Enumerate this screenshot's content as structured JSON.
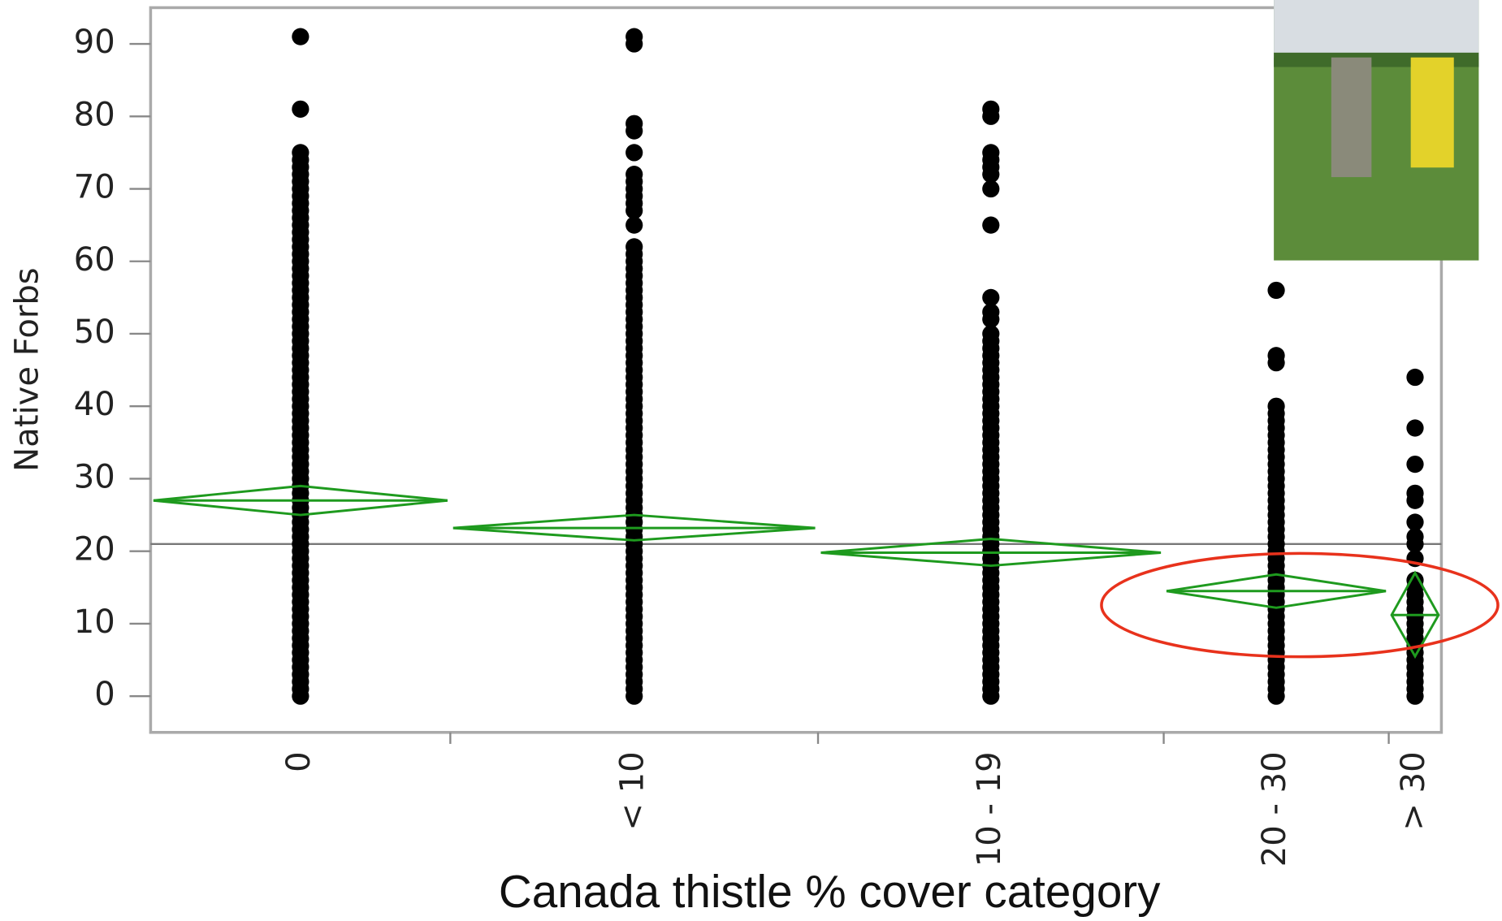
{
  "chart_data": {
    "type": "oneway",
    "y_label": "Native Forbs",
    "x_label": "Canada thistle % cover category",
    "categories": [
      "0",
      "< 10",
      "10 - 19",
      "20 - 30",
      "> 30"
    ],
    "points": [
      [
        0,
        1,
        2,
        3,
        4,
        5,
        6,
        7,
        8,
        9,
        10,
        11,
        12,
        13,
        14,
        15,
        16,
        17,
        18,
        19,
        20,
        21,
        22,
        23,
        24,
        25,
        26,
        27,
        28,
        29,
        30,
        31,
        32,
        33,
        34,
        35,
        36,
        37,
        38,
        39,
        40,
        41,
        42,
        43,
        44,
        45,
        46,
        47,
        48,
        49,
        50,
        51,
        52,
        53,
        54,
        55,
        56,
        57,
        58,
        59,
        60,
        61,
        62,
        63,
        64,
        65,
        66,
        67,
        68,
        69,
        70,
        71,
        72,
        73,
        74,
        75,
        81,
        91
      ],
      [
        0,
        1,
        2,
        3,
        4,
        5,
        6,
        7,
        8,
        9,
        10,
        11,
        12,
        13,
        14,
        15,
        16,
        17,
        18,
        19,
        20,
        21,
        22,
        23,
        24,
        25,
        26,
        27,
        28,
        29,
        30,
        31,
        32,
        33,
        34,
        35,
        36,
        37,
        38,
        39,
        40,
        41,
        42,
        43,
        44,
        45,
        46,
        47,
        48,
        49,
        50,
        51,
        52,
        53,
        54,
        55,
        56,
        57,
        58,
        59,
        60,
        61,
        62,
        65,
        67,
        68,
        69,
        70,
        71,
        72,
        75,
        78,
        79,
        90,
        91
      ],
      [
        0,
        1,
        2,
        3,
        4,
        5,
        6,
        7,
        8,
        9,
        10,
        11,
        12,
        13,
        14,
        15,
        16,
        17,
        18,
        19,
        20,
        21,
        22,
        23,
        24,
        25,
        26,
        27,
        28,
        29,
        30,
        31,
        32,
        33,
        34,
        35,
        36,
        37,
        38,
        39,
        40,
        41,
        42,
        43,
        44,
        45,
        46,
        47,
        48,
        49,
        50,
        52,
        53,
        55,
        65,
        70,
        72,
        73,
        74,
        75,
        80,
        81
      ],
      [
        0,
        1,
        2,
        3,
        4,
        5,
        6,
        7,
        8,
        9,
        10,
        11,
        12,
        13,
        14,
        15,
        16,
        17,
        18,
        19,
        20,
        21,
        22,
        23,
        24,
        25,
        26,
        27,
        28,
        29,
        30,
        31,
        32,
        33,
        34,
        35,
        36,
        37,
        38,
        39,
        40,
        46,
        47,
        56
      ],
      [
        0,
        1,
        2,
        3,
        4,
        5,
        6,
        7,
        8,
        9,
        10,
        11,
        12,
        13,
        14,
        15,
        16,
        19,
        21,
        22,
        24,
        27,
        28,
        32,
        37,
        44
      ]
    ],
    "means": [
      27,
      23.2,
      19.8,
      14.5,
      11.2
    ],
    "ci_lower": [
      25,
      21.5,
      18,
      12.2,
      5.5
    ],
    "ci_upper": [
      29,
      25,
      21.7,
      16.8,
      17
    ],
    "grand_mean": 21,
    "point_color": "#000000",
    "diamond_color": "#1e9a1e",
    "ylim": [
      -5,
      95
    ],
    "yticks": [
      0,
      10,
      20,
      30,
      40,
      50,
      60,
      70,
      80,
      90
    ]
  }
}
